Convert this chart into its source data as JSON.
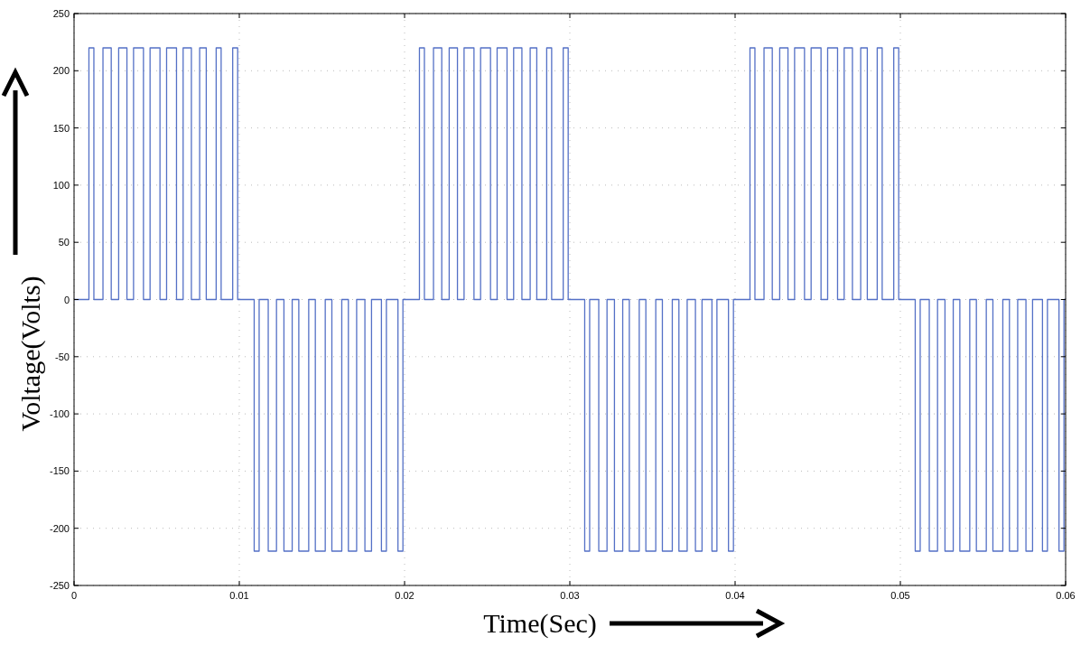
{
  "chart_data": {
    "type": "step",
    "xlabel": "Time(Sec)",
    "ylabel": "Voltage(Volts)",
    "xlim": [
      0,
      0.06
    ],
    "xticks": [
      0,
      0.01,
      0.02,
      0.03,
      0.04,
      0.05,
      0.06
    ],
    "ylim": [
      -250,
      250
    ],
    "yticks": [
      -250,
      -200,
      -150,
      -100,
      -50,
      0,
      50,
      100,
      150,
      200,
      250
    ],
    "grid": true,
    "line_style": "solid",
    "series": [
      {
        "color": "#5470c6",
        "x": [
          0,
          0.0009,
          0.0012,
          0.00175,
          0.00225,
          0.0027,
          0.0032,
          0.0036,
          0.0042,
          0.0046,
          0.0052,
          0.0056,
          0.0062,
          0.0066,
          0.0071,
          0.0076,
          0.008,
          0.0086,
          0.0089,
          0.0096,
          0.0099,
          0.01,
          0.0109,
          0.0112,
          0.01175,
          0.01225,
          0.0127,
          0.0132,
          0.0136,
          0.0142,
          0.0146,
          0.0152,
          0.0156,
          0.0162,
          0.0166,
          0.0171,
          0.0176,
          0.018,
          0.0186,
          0.0189,
          0.0196,
          0.0199,
          0.02,
          0.0209,
          0.0212,
          0.02175,
          0.02225,
          0.0227,
          0.0232,
          0.0236,
          0.0242,
          0.0246,
          0.0252,
          0.0256,
          0.0262,
          0.0266,
          0.0271,
          0.0276,
          0.028,
          0.0286,
          0.0289,
          0.0296,
          0.0299,
          0.03,
          0.0309,
          0.0312,
          0.03175,
          0.03225,
          0.0327,
          0.0332,
          0.0336,
          0.0342,
          0.0346,
          0.0352,
          0.0356,
          0.0362,
          0.0366,
          0.0371,
          0.0376,
          0.038,
          0.0386,
          0.0389,
          0.0396,
          0.0399,
          0.04,
          0.0409,
          0.0412,
          0.04175,
          0.04225,
          0.0427,
          0.0432,
          0.0436,
          0.0442,
          0.0446,
          0.0452,
          0.0456,
          0.0462,
          0.0466,
          0.0471,
          0.0476,
          0.048,
          0.0486,
          0.0489,
          0.0496,
          0.0499,
          0.05,
          0.0509,
          0.0512,
          0.05175,
          0.05225,
          0.0527,
          0.0532,
          0.0536,
          0.0542,
          0.0546,
          0.0552,
          0.0556,
          0.0562,
          0.0566,
          0.0571,
          0.0576,
          0.058,
          0.0586,
          0.0589,
          0.0596,
          0.0599,
          0.06
        ],
        "values": [
          0,
          220,
          0,
          220,
          0,
          220,
          0,
          220,
          0,
          220,
          0,
          220,
          0,
          220,
          0,
          220,
          0,
          220,
          0,
          220,
          0,
          0,
          -220,
          0,
          -220,
          0,
          -220,
          0,
          -220,
          0,
          -220,
          0,
          -220,
          0,
          -220,
          0,
          -220,
          0,
          -220,
          0,
          -220,
          0,
          0,
          220,
          0,
          220,
          0,
          220,
          0,
          220,
          0,
          220,
          0,
          220,
          0,
          220,
          0,
          220,
          0,
          220,
          0,
          220,
          0,
          0,
          -220,
          0,
          -220,
          0,
          -220,
          0,
          -220,
          0,
          -220,
          0,
          -220,
          0,
          -220,
          0,
          -220,
          0,
          -220,
          0,
          -220,
          0,
          0,
          220,
          0,
          220,
          0,
          220,
          0,
          220,
          0,
          220,
          0,
          220,
          0,
          220,
          0,
          220,
          0,
          220,
          0,
          220,
          0,
          0,
          -220,
          0,
          -220,
          0,
          -220,
          0,
          -220,
          0,
          -220,
          0,
          -220,
          0,
          -220,
          0,
          -220,
          0,
          -220,
          0,
          -220,
          0,
          0
        ]
      }
    ]
  }
}
